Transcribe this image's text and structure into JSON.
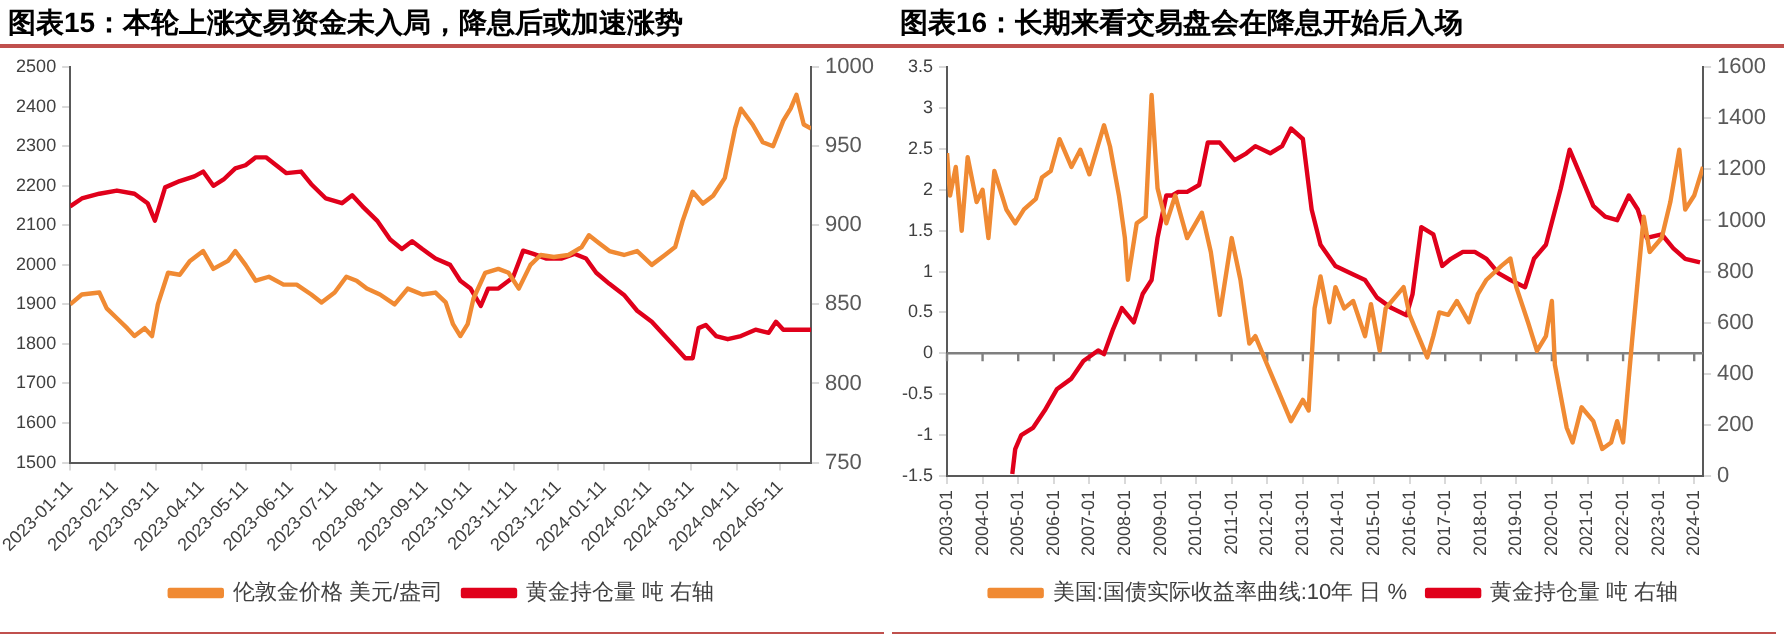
{
  "chart_data": [
    {
      "type": "line",
      "title": "图表15：本轮上涨交易资金未入局，降息后或加速涨势",
      "xlim": [
        "2023-01-11",
        "2024-06-01"
      ],
      "xticks": [
        "2023-01-11",
        "2023-02-11",
        "2023-03-11",
        "2023-04-11",
        "2023-05-11",
        "2023-06-11",
        "2023-07-11",
        "2023-08-11",
        "2023-09-11",
        "2023-10-11",
        "2023-11-11",
        "2023-12-11",
        "2024-01-11",
        "2024-02-11",
        "2024-03-11",
        "2024-04-11",
        "2024-05-11"
      ],
      "ylim": [
        1500,
        2500
      ],
      "yticks": [
        1500,
        1600,
        1700,
        1800,
        1900,
        2000,
        2100,
        2200,
        2300,
        2400,
        2500
      ],
      "y2lim": [
        750,
        1000
      ],
      "y2ticks": [
        750,
        800,
        850,
        900,
        950,
        1000
      ],
      "grid": false,
      "legend": "bottom",
      "marker": "none",
      "line_style": "solid",
      "series": [
        {
          "name": "伦敦金价格 美元/盎司",
          "color": "#f08a33",
          "x": [
            "2023-01-11",
            "2023-01-19",
            "2023-01-31",
            "2023-02-05",
            "2023-02-12",
            "2023-02-19",
            "2023-02-24",
            "2023-03-03",
            "2023-03-08",
            "2023-03-12",
            "2023-03-19",
            "2023-03-27",
            "2023-04-03",
            "2023-04-12",
            "2023-04-19",
            "2023-04-29",
            "2023-05-04",
            "2023-05-11",
            "2023-05-18",
            "2023-05-27",
            "2023-06-06",
            "2023-06-15",
            "2023-06-25",
            "2023-07-02",
            "2023-07-11",
            "2023-07-19",
            "2023-07-26",
            "2023-08-02",
            "2023-08-11",
            "2023-08-21",
            "2023-08-30",
            "2023-09-09",
            "2023-09-18",
            "2023-09-25",
            "2023-09-30",
            "2023-10-05",
            "2023-10-10",
            "2023-10-14",
            "2023-10-22",
            "2023-10-31",
            "2023-11-07",
            "2023-11-14",
            "2023-11-22",
            "2023-11-29",
            "2023-12-08",
            "2023-12-18",
            "2023-12-27",
            "2024-01-01",
            "2024-01-08",
            "2024-01-15",
            "2024-01-25",
            "2024-02-03",
            "2024-02-13",
            "2024-02-22",
            "2024-02-29",
            "2024-03-05",
            "2024-03-12",
            "2024-03-19",
            "2024-03-26",
            "2024-04-03",
            "2024-04-10",
            "2024-04-14",
            "2024-04-22",
            "2024-04-29",
            "2024-05-06",
            "2024-05-13",
            "2024-05-18",
            "2024-05-22",
            "2024-05-27",
            "2024-06-01"
          ],
          "values": [
            1900,
            1925,
            1930,
            1890,
            1865,
            1840,
            1820,
            1840,
            1820,
            1900,
            1980,
            1975,
            2010,
            2035,
            1990,
            2010,
            2035,
            2000,
            1960,
            1970,
            1950,
            1950,
            1925,
            1905,
            1930,
            1970,
            1960,
            1940,
            1925,
            1900,
            1940,
            1925,
            1930,
            1905,
            1850,
            1820,
            1850,
            1915,
            1980,
            1990,
            1980,
            1940,
            2000,
            2025,
            2020,
            2025,
            2045,
            2075,
            2055,
            2035,
            2025,
            2035,
            2000,
            2025,
            2045,
            2110,
            2185,
            2155,
            2175,
            2220,
            2345,
            2395,
            2355,
            2310,
            2300,
            2365,
            2395,
            2430,
            2355,
            2345
          ]
        },
        {
          "name": "黄金持仓量 吨 右轴",
          "color": "#e0001b",
          "axis": "y2",
          "x": [
            "2023-01-11",
            "2023-01-19",
            "2023-01-31",
            "2023-02-12",
            "2023-02-24",
            "2023-03-05",
            "2023-03-10",
            "2023-03-17",
            "2023-03-27",
            "2023-04-06",
            "2023-04-12",
            "2023-04-19",
            "2023-04-26",
            "2023-05-04",
            "2023-05-11",
            "2023-05-18",
            "2023-05-25",
            "2023-06-01",
            "2023-06-08",
            "2023-06-18",
            "2023-06-25",
            "2023-07-05",
            "2023-07-16",
            "2023-07-23",
            "2023-07-30",
            "2023-08-09",
            "2023-08-18",
            "2023-08-26",
            "2023-09-02",
            "2023-09-09",
            "2023-09-18",
            "2023-09-28",
            "2023-10-05",
            "2023-10-12",
            "2023-10-19",
            "2023-10-24",
            "2023-10-31",
            "2023-11-10",
            "2023-11-17",
            "2023-11-24",
            "2023-12-03",
            "2023-12-13",
            "2023-12-22",
            "2023-12-30",
            "2024-01-06",
            "2024-01-15",
            "2024-01-25",
            "2024-02-03",
            "2024-02-13",
            "2024-02-22",
            "2024-02-29",
            "2024-03-07",
            "2024-03-12",
            "2024-03-16",
            "2024-03-21",
            "2024-03-28",
            "2024-04-05",
            "2024-04-14",
            "2024-04-24",
            "2024-05-03",
            "2024-05-08",
            "2024-05-13",
            "2024-05-20",
            "2024-06-01"
          ],
          "values": [
            912,
            917,
            920,
            922,
            920,
            914,
            903,
            924,
            928,
            931,
            934,
            925,
            929,
            936,
            938,
            943,
            943,
            938,
            933,
            934,
            926,
            917,
            914,
            919,
            912,
            903,
            891,
            885,
            890,
            885,
            879,
            875,
            865,
            860,
            849,
            860,
            860,
            867,
            884,
            882,
            879,
            879,
            882,
            879,
            870,
            863,
            856,
            846,
            839,
            830,
            823,
            816,
            816,
            835,
            837,
            830,
            828,
            830,
            834,
            832,
            839,
            834,
            834,
            834
          ]
        }
      ]
    },
    {
      "type": "line",
      "title": "图表16：长期来看交易盘会在降息开始后入场",
      "xlim": [
        "2003-01",
        "2024-04"
      ],
      "xticks": [
        "2003-01",
        "2004-01",
        "2005-01",
        "2006-01",
        "2007-01",
        "2008-01",
        "2009-01",
        "2010-01",
        "2011-01",
        "2012-01",
        "2013-01",
        "2014-01",
        "2015-01",
        "2016-01",
        "2017-01",
        "2018-01",
        "2019-01",
        "2020-01",
        "2021-01",
        "2022-01",
        "2023-01",
        "2024-01"
      ],
      "ylim": [
        -1.5,
        3.5
      ],
      "yticks": [
        -1.5,
        -1,
        -0.5,
        0,
        0.5,
        1,
        1.5,
        2,
        2.5,
        3,
        3.5
      ],
      "y2lim": [
        0,
        1600
      ],
      "y2ticks": [
        0,
        200,
        400,
        600,
        800,
        1000,
        1200,
        1400,
        1600
      ],
      "grid": false,
      "legend": "bottom",
      "marker": "none",
      "line_style": "solid",
      "ref_lines": [
        {
          "axis": "y",
          "value": 0,
          "color": "#7f7f7f"
        }
      ],
      "series": [
        {
          "name": "美国:国债实际收益率曲线:10年 日 %",
          "color": "#f08a33",
          "x": [
            "2003-01",
            "2003-02",
            "2003-04",
            "2003-06",
            "2003-08",
            "2003-11",
            "2004-01",
            "2004-03",
            "2004-05",
            "2004-09",
            "2004-12",
            "2005-03",
            "2005-07",
            "2005-09",
            "2005-12",
            "2006-03",
            "2006-07",
            "2006-10",
            "2007-01",
            "2007-06",
            "2007-08",
            "2007-11",
            "2008-01",
            "2008-02",
            "2008-05",
            "2008-08",
            "2008-10",
            "2008-12",
            "2009-03",
            "2009-06",
            "2009-10",
            "2010-03",
            "2010-06",
            "2010-09",
            "2011-01",
            "2011-04",
            "2011-07",
            "2011-09",
            "2012-01",
            "2012-05",
            "2012-09",
            "2013-01",
            "2013-03",
            "2013-05",
            "2013-07",
            "2013-10",
            "2013-12",
            "2014-03",
            "2014-06",
            "2014-10",
            "2014-12",
            "2015-03",
            "2015-05",
            "2015-11",
            "2016-01",
            "2016-04",
            "2016-07",
            "2016-09",
            "2016-11",
            "2017-02",
            "2017-05",
            "2017-09",
            "2017-12",
            "2018-03",
            "2018-08",
            "2018-11",
            "2019-01",
            "2019-05",
            "2019-08",
            "2019-11",
            "2020-01",
            "2020-02",
            "2020-06",
            "2020-08",
            "2020-11",
            "2021-03",
            "2021-06",
            "2021-09",
            "2021-11",
            "2022-01",
            "2022-04",
            "2022-06",
            "2022-08",
            "2022-10",
            "2023-02",
            "2023-05",
            "2023-08",
            "2023-10",
            "2024-01",
            "2024-04"
          ],
          "values": [
            2.45,
            1.93,
            2.28,
            1.5,
            2.4,
            1.85,
            2,
            1.41,
            2.23,
            1.76,
            1.59,
            1.76,
            1.89,
            2.15,
            2.23,
            2.62,
            2.28,
            2.49,
            2.19,
            2.79,
            2.53,
            1.93,
            1.41,
            0.9,
            1.59,
            1.67,
            3.16,
            2.02,
            1.59,
            1.93,
            1.41,
            1.72,
            1.24,
            0.47,
            1.41,
            0.9,
            0.12,
            0.21,
            -0.14,
            -0.48,
            -0.83,
            -0.57,
            -0.7,
            0.55,
            0.94,
            0.38,
            0.81,
            0.55,
            0.64,
            0.21,
            0.6,
            0.03,
            0.55,
            0.81,
            0.47,
            0.21,
            -0.05,
            0.21,
            0.5,
            0.47,
            0.64,
            0.38,
            0.72,
            0.9,
            1.07,
            1.16,
            0.81,
            0.38,
            0.03,
            0.21,
            0.64,
            -0.14,
            -0.91,
            -1.09,
            -0.66,
            -0.83,
            -1.17,
            -1.09,
            -0.83,
            -1.09,
            0.12,
            0.9,
            1.67,
            1.24,
            1.41,
            1.85,
            2.49,
            1.76,
            1.93,
            2.28
          ]
        },
        {
          "name": "黄金持仓量 吨 右轴",
          "color": "#e0001b",
          "axis": "y2",
          "x": [
            "2004-11",
            "2004-12",
            "2005-02",
            "2005-06",
            "2005-10",
            "2006-02",
            "2006-07",
            "2006-11",
            "2007-04",
            "2007-06",
            "2007-09",
            "2007-12",
            "2008-04",
            "2008-07",
            "2008-10",
            "2008-12",
            "2009-03",
            "2009-05",
            "2009-07",
            "2009-10",
            "2010-02",
            "2010-05",
            "2010-09",
            "2011-02",
            "2011-06",
            "2011-09",
            "2012-02",
            "2012-06",
            "2012-09",
            "2013-01",
            "2013-04",
            "2013-07",
            "2013-12",
            "2014-05",
            "2014-10",
            "2015-02",
            "2015-07",
            "2015-12",
            "2016-02",
            "2016-05",
            "2016-09",
            "2016-12",
            "2017-03",
            "2017-07",
            "2017-11",
            "2018-03",
            "2018-07",
            "2018-11",
            "2019-04",
            "2019-07",
            "2019-11",
            "2020-04",
            "2020-07",
            "2020-10",
            "2021-03",
            "2021-07",
            "2021-11",
            "2022-03",
            "2022-06",
            "2022-09",
            "2023-02",
            "2023-06",
            "2023-10",
            "2024-03"
          ],
          "values": [
            8,
            105,
            160,
            188,
            257,
            339,
            381,
            450,
            491,
            477,
            574,
            657,
            601,
            712,
            767,
            932,
            1098,
            1098,
            1112,
            1112,
            1139,
            1305,
            1305,
            1236,
            1263,
            1291,
            1263,
            1291,
            1360,
            1319,
            1043,
            905,
            822,
            794,
            767,
            698,
            657,
            629,
            712,
            974,
            946,
            822,
            850,
            877,
            877,
            850,
            794,
            767,
            739,
            850,
            905,
            1125,
            1277,
            1194,
            1057,
            1015,
            1001,
            1098,
            1043,
            932,
            946,
            891,
            850,
            836
          ]
        }
      ]
    }
  ]
}
